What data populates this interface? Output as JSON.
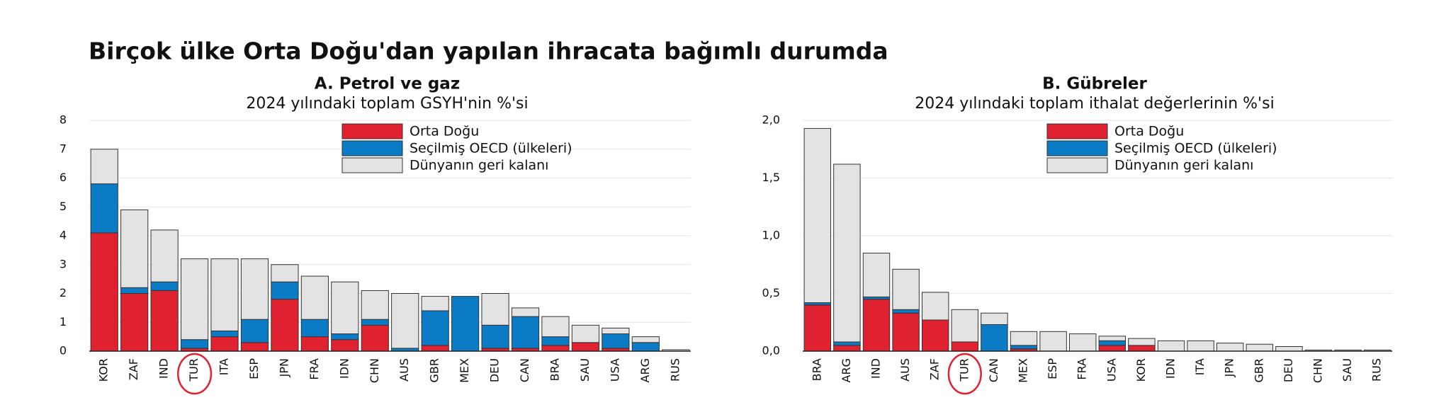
{
  "title": "Birçok ülke Orta Doğu'dan yapılan ihracata bağımlı durumda",
  "chart_data": [
    {
      "type": "bar",
      "stacked": true,
      "title": "A. Petrol ve gaz",
      "subtitle": "2024 yılındaki toplam GSYH'nin %'si",
      "categories": [
        "KOR",
        "ZAF",
        "IND",
        "TUR",
        "ITA",
        "ESP",
        "JPN",
        "FRA",
        "IDN",
        "CHN",
        "AUS",
        "GBR",
        "MEX",
        "DEU",
        "CAN",
        "BRA",
        "SAU",
        "USA",
        "ARG",
        "RUS"
      ],
      "series": [
        {
          "name": "Orta Doğu",
          "color": "#e02230",
          "values": [
            4.1,
            2.0,
            2.1,
            0.1,
            0.5,
            0.3,
            1.8,
            0.5,
            0.4,
            0.9,
            0.0,
            0.2,
            0.0,
            0.1,
            0.1,
            0.2,
            0.3,
            0.1,
            0.0,
            0.0
          ]
        },
        {
          "name": "Seçilmiş OECD (ülkeleri)",
          "color": "#0b7bc6",
          "values": [
            1.7,
            0.2,
            0.3,
            0.3,
            0.2,
            0.8,
            0.6,
            0.6,
            0.2,
            0.2,
            0.1,
            1.2,
            1.9,
            0.8,
            1.1,
            0.3,
            0.0,
            0.5,
            0.3,
            0.0
          ]
        },
        {
          "name": "Dünyanın geri kalanı",
          "color": "#e3e3e3",
          "values": [
            1.2,
            2.7,
            1.8,
            2.8,
            2.5,
            2.1,
            0.6,
            1.5,
            1.8,
            1.0,
            1.9,
            0.5,
            0.0,
            1.1,
            0.3,
            0.7,
            0.6,
            0.2,
            0.2,
            0.05
          ]
        }
      ],
      "ylim": [
        0,
        8
      ],
      "yticks": [
        0,
        1,
        2,
        3,
        4,
        5,
        6,
        7,
        8
      ],
      "grid": true
    },
    {
      "type": "bar",
      "stacked": true,
      "title": "B. Gübreler",
      "subtitle": "2024 yılındaki toplam ithalat değerlerinin %'si",
      "categories": [
        "BRA",
        "ARG",
        "IND",
        "AUS",
        "ZAF",
        "TUR",
        "CAN",
        "MEX",
        "ESP",
        "FRA",
        "USA",
        "KOR",
        "IDN",
        "ITA",
        "JPN",
        "GBR",
        "DEU",
        "CHN",
        "SAU",
        "RUS"
      ],
      "series": [
        {
          "name": "Orta Doğu",
          "color": "#e02230",
          "values": [
            0.4,
            0.05,
            0.45,
            0.33,
            0.27,
            0.08,
            0.0,
            0.02,
            0.0,
            0.0,
            0.05,
            0.05,
            0.0,
            0.0,
            0.0,
            0.0,
            0.0,
            0.0,
            0.0,
            0.0
          ]
        },
        {
          "name": "Seçilmiş OECD (ülkeleri)",
          "color": "#0b7bc6",
          "values": [
            0.02,
            0.03,
            0.02,
            0.03,
            0.0,
            0.0,
            0.23,
            0.03,
            0.0,
            0.0,
            0.04,
            0.0,
            0.0,
            0.0,
            0.0,
            0.0,
            0.0,
            0.0,
            0.0,
            0.0
          ]
        },
        {
          "name": "Dünyanın geri kalanı",
          "color": "#e3e3e3",
          "values": [
            1.51,
            1.54,
            0.38,
            0.35,
            0.24,
            0.28,
            0.1,
            0.12,
            0.17,
            0.15,
            0.04,
            0.06,
            0.09,
            0.09,
            0.07,
            0.06,
            0.04,
            0.01,
            0.01,
            0.01
          ]
        }
      ],
      "ylim": [
        0,
        2
      ],
      "yticks": [
        {
          "value": 0,
          "label": "0,0"
        },
        {
          "value": 0.5,
          "label": "0,5"
        },
        {
          "value": 1,
          "label": "1,0"
        },
        {
          "value": 1.5,
          "label": "1,5"
        },
        {
          "value": 2,
          "label": "2,0"
        }
      ],
      "grid": true
    }
  ]
}
